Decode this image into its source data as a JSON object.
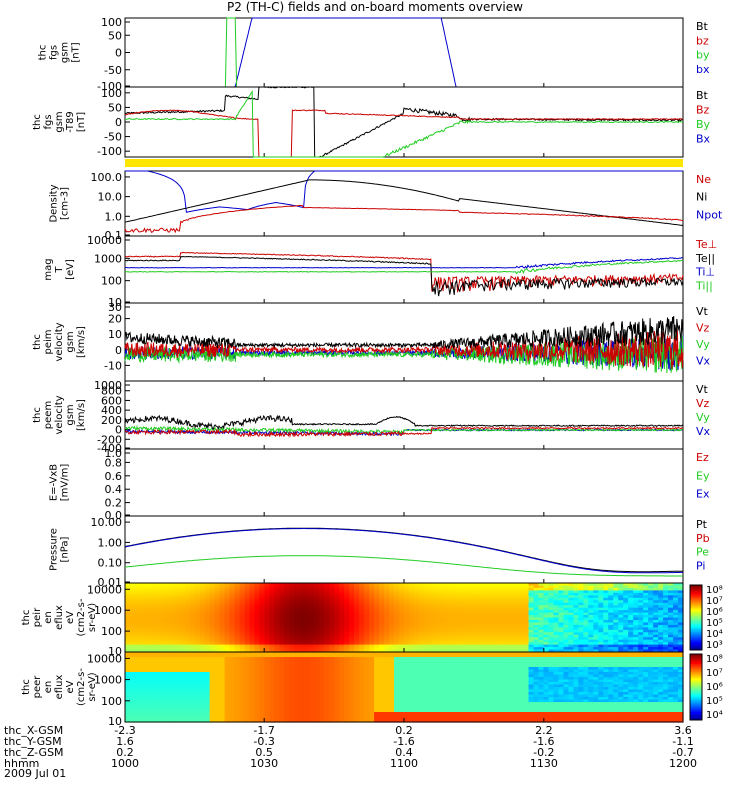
{
  "title": "P2 (TH-C) fields and on-board moments overview",
  "colors": {
    "black": "#000000",
    "red": "#cc0000",
    "green": "#22cc22",
    "blue": "#0000cc",
    "yellow": "#ffe600"
  },
  "chart_data": [
    {
      "type": "line",
      "ylabel_lines": [
        "thc",
        "fgs",
        "gsm",
        "[nT]"
      ],
      "ylim": [
        -100,
        100
      ],
      "yticks": [
        "100",
        "50",
        "0",
        "-50",
        "-100"
      ],
      "legend": [
        {
          "label": "Bt",
          "color": "black"
        },
        {
          "label": "bz",
          "color": "red"
        },
        {
          "label": "by",
          "color": "green"
        },
        {
          "label": "bx",
          "color": "blue"
        }
      ]
    },
    {
      "type": "line",
      "ylabel_lines": [
        "thc",
        "fgs",
        "gsm",
        "-T89",
        "[nT]"
      ],
      "ylim": [
        -120,
        120
      ],
      "yticks": [
        "100",
        "50",
        "0",
        "-50",
        "-100"
      ],
      "legend": [
        {
          "label": "Bt",
          "color": "black"
        },
        {
          "label": "Bz",
          "color": "red"
        },
        {
          "label": "By",
          "color": "green"
        },
        {
          "label": "Bx",
          "color": "blue"
        }
      ]
    },
    {
      "type": "line",
      "ylabel_lines": [
        "Density",
        "[cm-3]"
      ],
      "log": true,
      "ylim": [
        0.1,
        200
      ],
      "yticks": [
        "100.0",
        "10.0",
        "1.0",
        "0.1"
      ],
      "legend": [
        {
          "label": "Ne",
          "color": "red"
        },
        {
          "label": "Ni",
          "color": "black"
        },
        {
          "label": "Npot",
          "color": "blue"
        }
      ]
    },
    {
      "type": "line",
      "ylabel_lines": [
        "mag",
        "T",
        "[eV]"
      ],
      "log": true,
      "ylim": [
        10,
        10000
      ],
      "yticks": [
        "10000",
        "1000",
        "100",
        "10"
      ],
      "legend": [
        {
          "label": "Te⊥",
          "color": "red"
        },
        {
          "label": "Te||",
          "color": "black"
        },
        {
          "label": "Ti⊥",
          "color": "blue"
        },
        {
          "label": "Ti||",
          "color": "green"
        }
      ]
    },
    {
      "type": "line",
      "ylabel_lines": [
        "thc",
        "peim",
        "velocity",
        "gsm",
        "[km/s]"
      ],
      "ylim": [
        -20,
        30
      ],
      "yticks": [
        "30",
        "20",
        "10",
        "0",
        "-10"
      ],
      "legend": [
        {
          "label": "Vt",
          "color": "black"
        },
        {
          "label": "Vz",
          "color": "red"
        },
        {
          "label": "Vy",
          "color": "green"
        },
        {
          "label": "Vx",
          "color": "blue"
        }
      ]
    },
    {
      "type": "line",
      "ylabel_lines": [
        "thc",
        "peem",
        "velocity",
        "gsm",
        "[km/s]"
      ],
      "ylim": [
        -400,
        1000
      ],
      "yticks": [
        "1000",
        "800",
        "600",
        "400",
        "200",
        "0",
        "-200",
        "-400"
      ],
      "legend": [
        {
          "label": "Vt",
          "color": "black"
        },
        {
          "label": "Vz",
          "color": "red"
        },
        {
          "label": "Vy",
          "color": "green"
        },
        {
          "label": "Vx",
          "color": "blue"
        }
      ]
    },
    {
      "type": "line",
      "ylabel_lines": [
        "E=-VxB",
        "[mV/m]"
      ],
      "ylim": [
        0,
        1
      ],
      "yticks": [
        "1.0",
        "0.8",
        "0.6",
        "0.4",
        "0.2",
        "0.0"
      ],
      "legend": [
        {
          "label": "Ez",
          "color": "red"
        },
        {
          "label": "Ey",
          "color": "green"
        },
        {
          "label": "Ex",
          "color": "blue"
        }
      ]
    },
    {
      "type": "line",
      "ylabel_lines": [
        "Pressure",
        "[nPa]"
      ],
      "log": true,
      "ylim": [
        0.01,
        20
      ],
      "yticks": [
        "10.00",
        "1.00",
        "0.10",
        "0.01"
      ],
      "legend": [
        {
          "label": "Pt",
          "color": "black"
        },
        {
          "label": "Pb",
          "color": "red"
        },
        {
          "label": "Pe",
          "color": "green"
        },
        {
          "label": "Pi",
          "color": "blue"
        }
      ]
    },
    {
      "type": "heatmap",
      "ylabel_lines": [
        "thc",
        "peir",
        "en",
        "eflux",
        "eV",
        "(cm2-s-",
        "sr-eV)"
      ],
      "ylim": [
        10,
        20000
      ],
      "yticks": [
        "10000",
        "1000",
        "100",
        "10"
      ],
      "colorbar": [
        "10⁸",
        "10⁷",
        "10⁶",
        "10⁵",
        "10⁴",
        "10³"
      ]
    },
    {
      "type": "heatmap",
      "ylabel_lines": [
        "thc",
        "peer",
        "en",
        "eflux",
        "eV",
        "(cm2-s-",
        "sr-eV)"
      ],
      "ylim": [
        10,
        20000
      ],
      "yticks": [
        "10000",
        "1000",
        "100",
        "10"
      ],
      "colorbar": [
        "10⁸",
        "10⁷",
        "10⁶",
        "10⁵",
        "10⁴"
      ]
    }
  ],
  "x_axis": {
    "row_labels": [
      "thc_X-GSM",
      "thc_Y-GSM",
      "thc_Z-GSM",
      "hhmm",
      "2009 Jul 01"
    ],
    "columns": [
      [
        "-2.3",
        "1.6",
        "0.2",
        "1000"
      ],
      [
        "-1.7",
        "-0.3",
        "0.5",
        "1030"
      ],
      [
        "0.2",
        "-1.6",
        "0.4",
        "1100"
      ],
      [
        "2.2",
        "-1.6",
        "-0.2",
        "1130"
      ],
      [
        "3.6",
        "-1.1",
        "-0.7",
        "1200"
      ]
    ]
  }
}
